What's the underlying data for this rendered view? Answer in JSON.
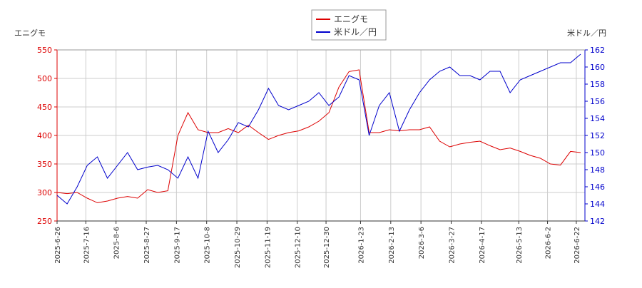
{
  "chart_data": {
    "type": "line",
    "legend": "top",
    "grid": true,
    "y_label": "エニグモ",
    "y2_label": "米ドル／円",
    "x": [
      "2025-6-26",
      "2025-7-3",
      "2025-7-10",
      "2025-7-17",
      "2025-7-24",
      "2025-7-31",
      "2025-8-7",
      "2025-8-14",
      "2025-8-21",
      "2025-8-28",
      "2025-9-4",
      "2025-9-11",
      "2025-9-18",
      "2025-9-25",
      "2025-10-2",
      "2025-10-9",
      "2025-10-16",
      "2025-10-23",
      "2025-10-30",
      "2025-11-6",
      "2025-11-13",
      "2025-11-20",
      "2025-11-27",
      "2025-12-4",
      "2025-12-11",
      "2025-12-18",
      "2025-12-25",
      "2026-1-1",
      "2026-1-8",
      "2026-1-15",
      "2026-1-22",
      "2026-1-29",
      "2026-2-5",
      "2026-2-12",
      "2026-2-19",
      "2026-2-26",
      "2026-3-5",
      "2026-3-12",
      "2026-3-19",
      "2026-3-26",
      "2026-4-2",
      "2026-4-9",
      "2026-4-16",
      "2026-4-23",
      "2026-4-30",
      "2026-5-7",
      "2026-5-14",
      "2026-5-21",
      "2026-5-28",
      "2026-6-4",
      "2026-6-11",
      "2026-6-18",
      "2026-6-25"
    ],
    "xlim": [
      "2025-6-26",
      "2026-6-28"
    ],
    "xticks": [
      "2025-6-26",
      "2025-7-16",
      "2025-8-6",
      "2025-8-27",
      "2025-9-17",
      "2025-10-8",
      "2025-10-29",
      "2025-11-19",
      "2025-12-10",
      "2025-12-30",
      "2026-1-23",
      "2026-2-13",
      "2026-3-6",
      "2026-3-27",
      "2026-4-17",
      "2026-5-13",
      "2026-6-2",
      "2026-6-22"
    ],
    "ylim": [
      250,
      550
    ],
    "yticks": [
      250,
      300,
      350,
      400,
      450,
      500,
      550
    ],
    "y2lim": [
      142,
      162
    ],
    "y2ticks": [
      142,
      144,
      146,
      148,
      150,
      152,
      154,
      156,
      158,
      160,
      162
    ],
    "series": [
      {
        "name": "エニグモ",
        "color": "#dd0000",
        "values": [
          300,
          298,
          300,
          290,
          282,
          285,
          290,
          293,
          290,
          305,
          300,
          303,
          400,
          440,
          410,
          405,
          405,
          412,
          405,
          418,
          405,
          393,
          400,
          405,
          408,
          415,
          425,
          440,
          485,
          512,
          515,
          405,
          405,
          410,
          408,
          410,
          410,
          415,
          390,
          380,
          385,
          388,
          390,
          382,
          375,
          378,
          372,
          365,
          360,
          350,
          348,
          372,
          370
        ]
      },
      {
        "name": "米ドル／円",
        "color": "#0000cc",
        "axis": "y2",
        "values": [
          145,
          144,
          146,
          148.5,
          149.5,
          147,
          148.5,
          150,
          148,
          148.3,
          148.5,
          148,
          147,
          149.5,
          147,
          152.5,
          150,
          151.5,
          153.5,
          153,
          155,
          157.5,
          155.5,
          155,
          155.5,
          156,
          157,
          155.5,
          156.5,
          159,
          158.5,
          152,
          155.5,
          157,
          152.5,
          155,
          157,
          158.5,
          159.5,
          160,
          159,
          159,
          158.5,
          159.5,
          159.5,
          157,
          158.5,
          159,
          159.5,
          160,
          160.5,
          160.5,
          161.5
        ]
      }
    ]
  }
}
